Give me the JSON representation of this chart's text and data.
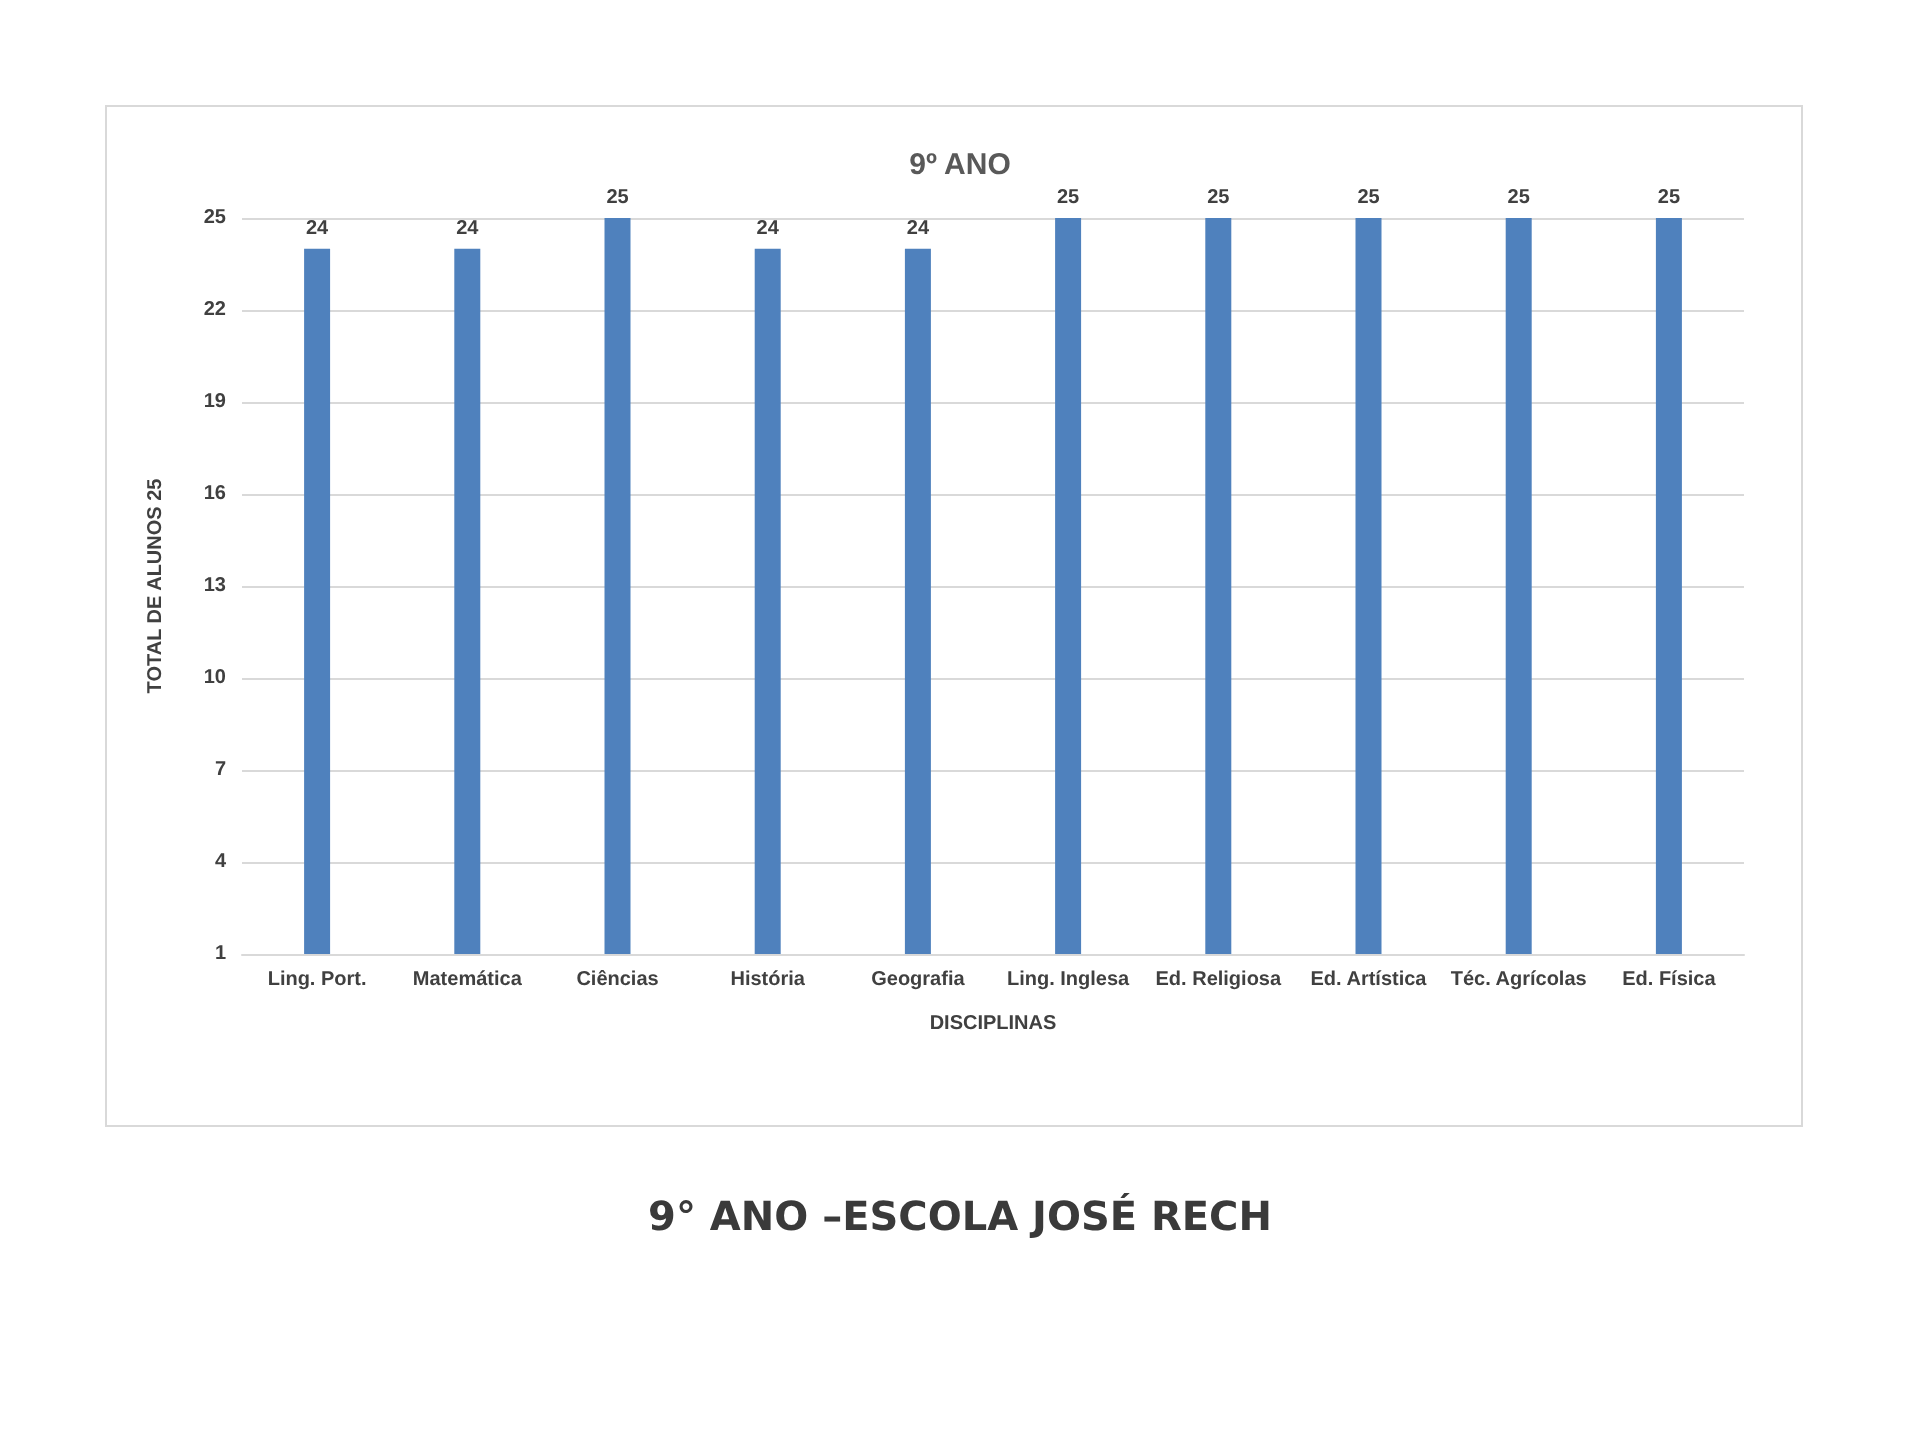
{
  "chart_data": {
    "type": "bar",
    "title": "9º ANO",
    "xlabel": "DISCIPLINAS",
    "ylabel": "TOTAL DE ALUNOS 25",
    "categories": [
      "Ling. Port.",
      "Matemática",
      "Ciências",
      "História",
      "Geografia",
      "Ling. Inglesa",
      "Ed. Religiosa",
      "Ed. Artística",
      "Téc. Agrícolas",
      "Ed. Física"
    ],
    "values": [
      24,
      24,
      25,
      24,
      24,
      25,
      25,
      25,
      25,
      25
    ],
    "color": "#4f81bd",
    "ylim": [
      1,
      25
    ],
    "yticks": [
      1,
      4,
      7,
      10,
      13,
      16,
      19,
      22,
      25
    ],
    "grid": "y",
    "data_labels": true,
    "annotations": [
      "9° ANO –ESCOLA JOSÉ RECH"
    ]
  }
}
